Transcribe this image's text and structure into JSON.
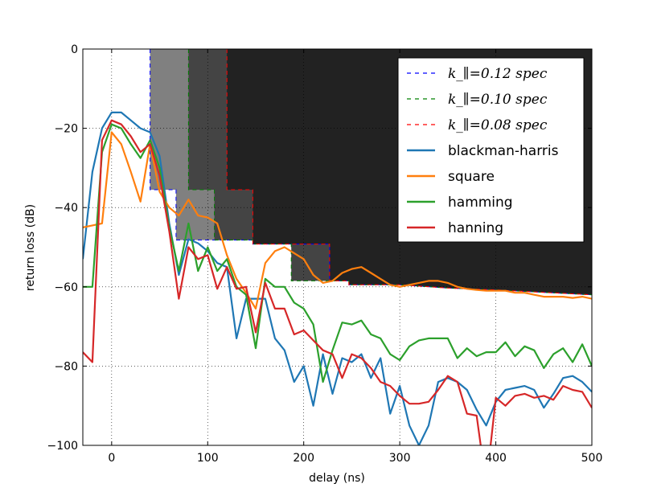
{
  "chart_data": {
    "type": "line",
    "xlabel": "delay (ns)",
    "ylabel": "return loss (dB)",
    "xlim": [
      -30,
      500
    ],
    "ylim": [
      -100,
      0
    ],
    "xticks": [
      0,
      100,
      200,
      300,
      400,
      500
    ],
    "yticks": [
      0,
      -20,
      -40,
      -60,
      -80,
      -100
    ],
    "grid": true,
    "legend_position": "top-right",
    "spec_regions": [
      {
        "name": "k_∥=0.12 spec",
        "color": "#0000ff",
        "fill": "#808080",
        "boundary": [
          [
            40,
            0
          ],
          [
            40,
            -35.5
          ],
          [
            67,
            -35.5
          ],
          [
            67,
            -48.2
          ],
          [
            147,
            -48.2
          ],
          [
            147,
            -49.2
          ],
          [
            227,
            -49.2
          ],
          [
            227,
            -58.5
          ],
          [
            247,
            -58.5
          ],
          [
            247,
            -59.5
          ],
          [
            300,
            -59.5
          ],
          [
            350,
            -60.3
          ],
          [
            400,
            -60.8
          ],
          [
            450,
            -61.4
          ],
          [
            500,
            -62
          ]
        ]
      },
      {
        "name": "k_∥=0.10 spec",
        "color": "#008000",
        "fill": "#444444",
        "boundary": [
          [
            80,
            0
          ],
          [
            80,
            -35.5
          ],
          [
            107,
            -35.5
          ],
          [
            107,
            -48.2
          ],
          [
            147,
            -48.2
          ],
          [
            147,
            -49.2
          ],
          [
            187,
            -49.2
          ],
          [
            187,
            -58.5
          ],
          [
            247,
            -58.5
          ],
          [
            247,
            -59.5
          ],
          [
            300,
            -59.5
          ],
          [
            350,
            -60.3
          ],
          [
            400,
            -60.8
          ],
          [
            450,
            -61.4
          ],
          [
            500,
            -62
          ]
        ]
      },
      {
        "name": "k_∥=0.08 spec",
        "color": "#ff0000",
        "fill": "#222222",
        "boundary": [
          [
            120,
            0
          ],
          [
            120,
            -35.5
          ],
          [
            147,
            -35.5
          ],
          [
            147,
            -48.2
          ],
          [
            147,
            -49.2
          ],
          [
            227,
            -49.2
          ],
          [
            227,
            -58.5
          ],
          [
            247,
            -58.5
          ],
          [
            247,
            -59.5
          ],
          [
            300,
            -59.5
          ],
          [
            350,
            -60.3
          ],
          [
            400,
            -60.8
          ],
          [
            450,
            -61.4
          ],
          [
            500,
            -62
          ]
        ]
      }
    ],
    "series": [
      {
        "name": "blackman-harris",
        "color": "#1f77b4",
        "x": [
          -30,
          -20,
          -10,
          0,
          10,
          20,
          30,
          40,
          50,
          60,
          70,
          80,
          90,
          100,
          110,
          120,
          130,
          140,
          150,
          160,
          170,
          180,
          190,
          200,
          210,
          220,
          230,
          240,
          250,
          260,
          270,
          280,
          290,
          300,
          310,
          320,
          330,
          340,
          350,
          360,
          370,
          380,
          390,
          400,
          410,
          420,
          430,
          440,
          450,
          460,
          470,
          480,
          490,
          500
        ],
        "y": [
          -53,
          -31,
          -20,
          -16,
          -16,
          -18,
          -20,
          -21,
          -27,
          -44,
          -57,
          -48,
          -49,
          -51,
          -54,
          -55,
          -73,
          -63,
          -63,
          -63,
          -73,
          -76,
          -84,
          -80,
          -90,
          -77,
          -87,
          -78,
          -79,
          -77,
          -83,
          -78,
          -92,
          -85,
          -95,
          -100,
          -95,
          -84,
          -83,
          -84,
          -86,
          -91,
          -95,
          -89,
          -86,
          -85.5,
          -85,
          -86,
          -90.5,
          -87,
          -83,
          -82.5,
          -84,
          -86.5
        ]
      },
      {
        "name": "square",
        "color": "#ff7f0e",
        "x": [
          -30,
          -20,
          -10,
          0,
          10,
          20,
          30,
          40,
          50,
          60,
          70,
          80,
          90,
          100,
          110,
          120,
          130,
          140,
          150,
          160,
          170,
          180,
          190,
          200,
          210,
          220,
          230,
          240,
          250,
          260,
          270,
          280,
          290,
          300,
          310,
          320,
          330,
          340,
          350,
          360,
          370,
          380,
          390,
          400,
          410,
          420,
          430,
          440,
          450,
          460,
          470,
          480,
          490,
          500
        ],
        "y": [
          -45,
          -44.5,
          -44,
          -21,
          -24,
          -31,
          -38.5,
          -24,
          -36,
          -40,
          -42,
          -38,
          -42,
          -42.5,
          -44,
          -52,
          -58,
          -61.5,
          -65.5,
          -54,
          -51,
          -50,
          -51.5,
          -53,
          -57,
          -59,
          -58.5,
          -56.5,
          -55.5,
          -55,
          -56.5,
          -58,
          -59.5,
          -60,
          -59.5,
          -59,
          -58.5,
          -58.5,
          -59,
          -60,
          -60.5,
          -60.8,
          -61,
          -61,
          -61,
          -61.5,
          -61.5,
          -62,
          -62.5,
          -62.5,
          -62.5,
          -62.8,
          -62.5,
          -63
        ]
      },
      {
        "name": "hamming",
        "color": "#2ca02c",
        "x": [
          -30,
          -20,
          -10,
          0,
          10,
          20,
          30,
          40,
          50,
          60,
          70,
          80,
          90,
          100,
          110,
          120,
          130,
          140,
          150,
          160,
          170,
          180,
          190,
          200,
          210,
          220,
          230,
          240,
          250,
          260,
          270,
          280,
          290,
          300,
          310,
          320,
          330,
          340,
          350,
          360,
          370,
          380,
          390,
          400,
          410,
          420,
          430,
          440,
          450,
          460,
          470,
          480,
          490,
          500
        ],
        "y": [
          -60,
          -60,
          -26,
          -19,
          -20,
          -24,
          -27.5,
          -23,
          -30,
          -45,
          -56,
          -44,
          -56,
          -50,
          -56,
          -53,
          -60,
          -62,
          -75.5,
          -58,
          -60,
          -60,
          -64,
          -65.5,
          -69.5,
          -84,
          -76,
          -69,
          -69.5,
          -68.5,
          -72,
          -73,
          -77,
          -78.5,
          -75,
          -73.5,
          -73,
          -73,
          -73,
          -78,
          -75.5,
          -77.5,
          -76.5,
          -76.5,
          -74,
          -77.5,
          -75,
          -76,
          -80.5,
          -77,
          -75.5,
          -79,
          -74.5,
          -80
        ]
      },
      {
        "name": "hanning",
        "color": "#d62728",
        "x": [
          -30,
          -20,
          -10,
          0,
          10,
          20,
          30,
          40,
          50,
          60,
          70,
          80,
          90,
          100,
          110,
          120,
          130,
          140,
          150,
          160,
          170,
          180,
          190,
          200,
          210,
          220,
          230,
          240,
          250,
          260,
          270,
          280,
          290,
          300,
          310,
          320,
          330,
          340,
          350,
          360,
          370,
          380,
          390,
          400,
          410,
          420,
          430,
          440,
          450,
          460,
          470,
          480,
          490,
          500
        ],
        "y": [
          -76.5,
          -79,
          -23,
          -18,
          -19,
          -22,
          -26,
          -24,
          -32,
          -46,
          -63,
          -50,
          -53,
          -52,
          -60.5,
          -55,
          -60.5,
          -60,
          -71.5,
          -59,
          -65.5,
          -65.5,
          -72,
          -71,
          -73.5,
          -76,
          -77,
          -83,
          -77,
          -78,
          -80.5,
          -84,
          -85,
          -87.5,
          -89.5,
          -89.5,
          -89,
          -86,
          -82.5,
          -84,
          -92,
          -92.5,
          -110,
          -88,
          -90,
          -87.5,
          -87,
          -88,
          -87.5,
          -88.5,
          -85,
          -86,
          -86.5,
          -90.5
        ]
      }
    ]
  }
}
